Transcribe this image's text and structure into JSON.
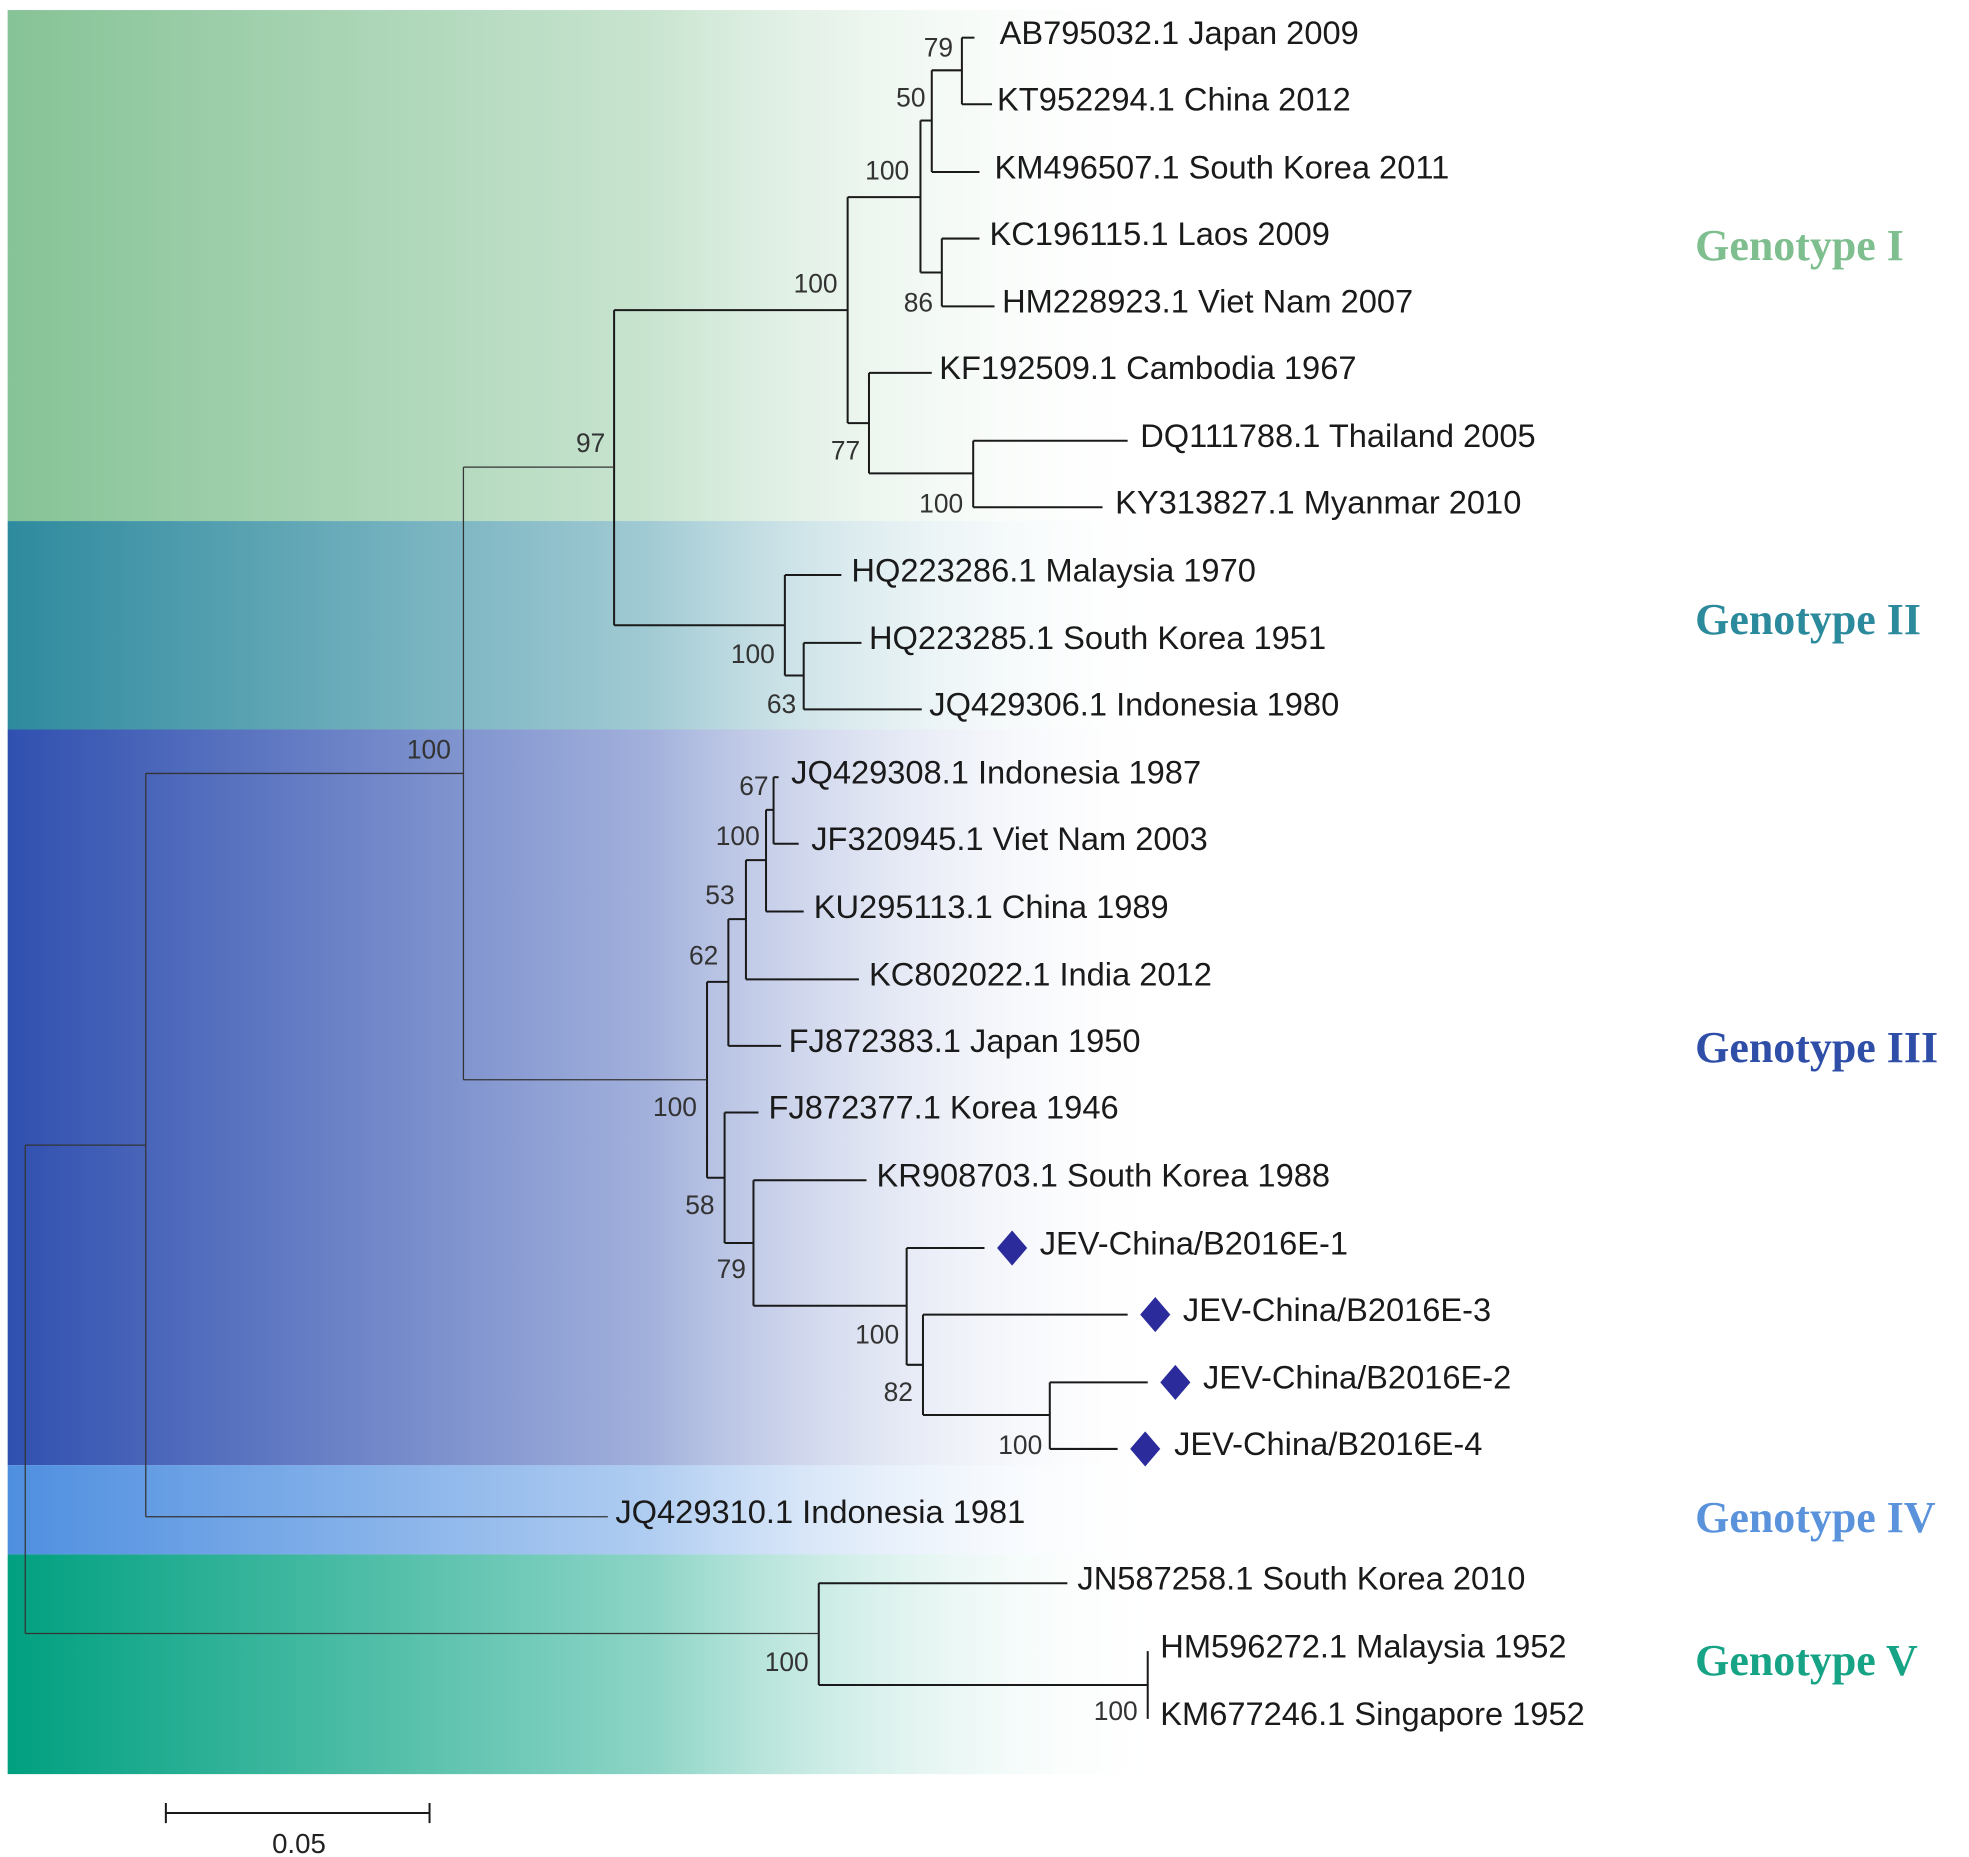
{
  "taxa": [
    "AB795032.1 Japan 2009",
    "KT952294.1 China 2012",
    "KM496507.1 South Korea 2011",
    "KC196115.1 Laos 2009",
    "HM228923.1 Viet Nam 2007",
    "KF192509.1 Cambodia 1967",
    "DQ111788.1 Thailand 2005",
    "KY313827.1 Myanmar 2010",
    "HQ223286.1 Malaysia 1970",
    "HQ223285.1 South Korea 1951",
    "JQ429306.1 Indonesia 1980",
    "JQ429308.1 Indonesia 1987",
    "JF320945.1 Viet Nam 2003",
    "KU295113.1 China 1989",
    "KC802022.1 India 2012",
    "FJ872383.1 Japan 1950",
    "FJ872377.1 Korea 1946",
    "KR908703.1 South Korea 1988",
    "JEV-China/B2016E-1",
    "JEV-China/B2016E-3",
    "JEV-China/B2016E-2",
    "JEV-China/B2016E-4",
    "JQ429310.1 Indonesia 1981",
    "JN587258.1 South Korea 2010",
    "HM596272.1 Malaysia 1952",
    "KM677246.1 Singapore 1952"
  ],
  "highlighted_taxa_marker": "diamond-icon",
  "highlight_color": "#2b2b9b",
  "bootstrap": [
    "79",
    "50",
    "100",
    "86",
    "100",
    "77",
    "100",
    "97",
    "100",
    "63",
    "100",
    "67",
    "100",
    "53",
    "62",
    "100",
    "58",
    "79",
    "100",
    "82",
    "100",
    "100",
    "100"
  ],
  "genotypes": [
    {
      "label": "Genotype I",
      "color": "#7fbf8f"
    },
    {
      "label": "Genotype II",
      "color": "#2b8a9b"
    },
    {
      "label": "Genotype III",
      "color": "#2f4ea8"
    },
    {
      "label": "Genotype IV",
      "color": "#5a93dc"
    },
    {
      "label": "Genotype V",
      "color": "#17a386"
    }
  ],
  "band_colors": [
    "#86c396",
    "#2e8a9e",
    "#3050b0",
    "#4f8fe0",
    "#00a080"
  ],
  "scale_bar": {
    "label": "0.05"
  }
}
